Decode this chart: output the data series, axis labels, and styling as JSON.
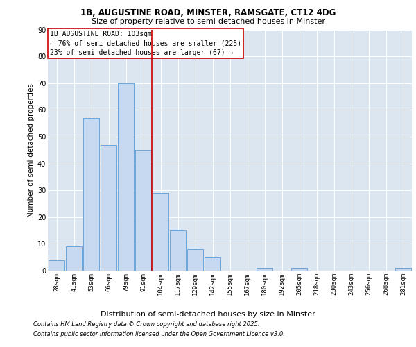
{
  "title1": "1B, AUGUSTINE ROAD, MINSTER, RAMSGATE, CT12 4DG",
  "title2": "Size of property relative to semi-detached houses in Minster",
  "xlabel": "Distribution of semi-detached houses by size in Minster",
  "ylabel": "Number of semi-detached properties",
  "categories": [
    "28sqm",
    "41sqm",
    "53sqm",
    "66sqm",
    "79sqm",
    "91sqm",
    "104sqm",
    "117sqm",
    "129sqm",
    "142sqm",
    "155sqm",
    "167sqm",
    "180sqm",
    "192sqm",
    "205sqm",
    "218sqm",
    "230sqm",
    "243sqm",
    "256sqm",
    "268sqm",
    "281sqm"
  ],
  "values": [
    4,
    9,
    57,
    47,
    70,
    45,
    29,
    15,
    8,
    5,
    0,
    0,
    1,
    0,
    1,
    0,
    0,
    0,
    0,
    0,
    1
  ],
  "bar_color": "#c6d9f0",
  "bar_edge_color": "#5b9bd5",
  "vline_color": "#cc0000",
  "vline_x": 5.5,
  "annotation_text": "1B AUGUSTINE ROAD: 103sqm\n← 76% of semi-detached houses are smaller (225)\n23% of semi-detached houses are larger (67) →",
  "annotation_box_color": "#cc0000",
  "footer1": "Contains HM Land Registry data © Crown copyright and database right 2025.",
  "footer2": "Contains public sector information licensed under the Open Government Licence v3.0.",
  "ylim": [
    0,
    90
  ],
  "yticks": [
    0,
    10,
    20,
    30,
    40,
    50,
    60,
    70,
    80,
    90
  ],
  "plot_background": "#dce6f1",
  "title1_fontsize": 8.5,
  "title2_fontsize": 8.0,
  "ylabel_fontsize": 7.5,
  "xlabel_fontsize": 8.0,
  "tick_fontsize": 6.5,
  "annot_fontsize": 7.0,
  "footer_fontsize": 6.0
}
